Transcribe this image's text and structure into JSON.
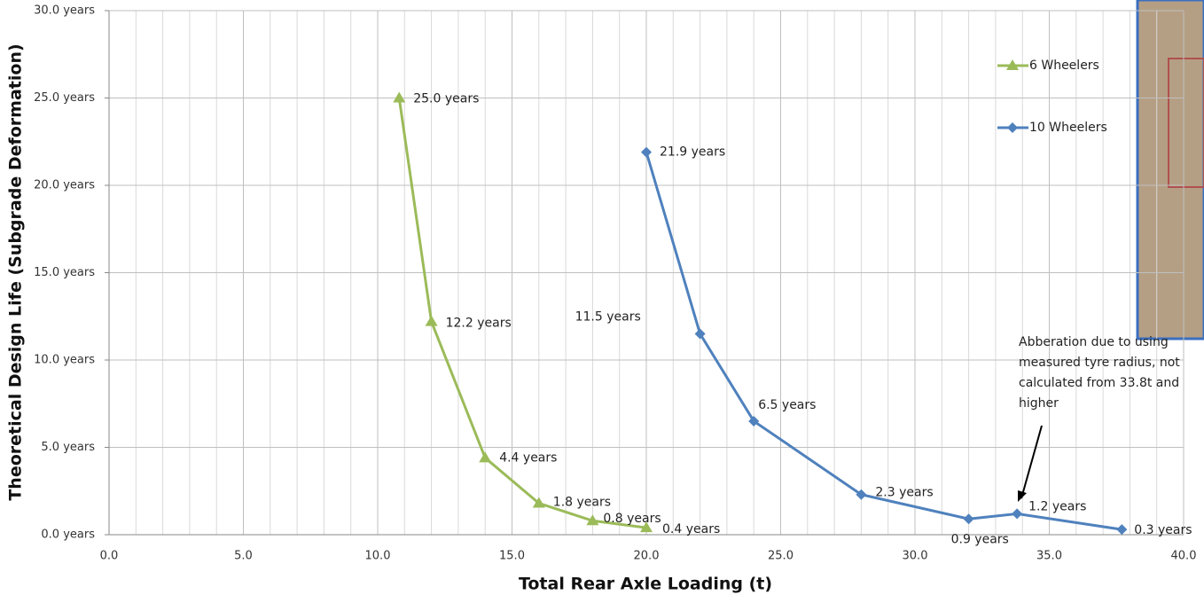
{
  "chart_data": {
    "type": "line",
    "x_label": "Total Rear Axle Loading (t)",
    "y_label": "Theoretical Design Life  (Subgrade Deformation)",
    "xlim": [
      0,
      40
    ],
    "ylim": [
      0,
      30
    ],
    "xticks": [
      {
        "value": 0,
        "label": "0.0"
      },
      {
        "value": 5,
        "label": "5.0"
      },
      {
        "value": 10,
        "label": "10.0"
      },
      {
        "value": 15,
        "label": "15.0"
      },
      {
        "value": 20,
        "label": "20.0"
      },
      {
        "value": 25,
        "label": "25.0"
      },
      {
        "value": 30,
        "label": "30.0"
      },
      {
        "value": 35,
        "label": "35.0"
      },
      {
        "value": 40,
        "label": "40.0"
      }
    ],
    "xminorticks": [
      1,
      2,
      3,
      4,
      6,
      7,
      8,
      9,
      11,
      12,
      13,
      14,
      16,
      17,
      18,
      19,
      21,
      22,
      23,
      24,
      26,
      27,
      28,
      29,
      31,
      32,
      33,
      34,
      36,
      37,
      38,
      39
    ],
    "yticks": [
      {
        "value": 0,
        "label": "0.0 years"
      },
      {
        "value": 5,
        "label": "5.0 years"
      },
      {
        "value": 10,
        "label": "10.0 years"
      },
      {
        "value": 15,
        "label": "15.0 years"
      },
      {
        "value": 20,
        "label": "20.0 years"
      },
      {
        "value": 25,
        "label": "25.0 years"
      },
      {
        "value": 30,
        "label": "30.0 years"
      }
    ],
    "grid": true,
    "legend": "upper right",
    "series": [
      {
        "name": "6 Wheelers",
        "color": "#9bbb59",
        "marker": "triangle",
        "x": [
          10.8,
          12,
          14,
          16,
          18,
          20
        ],
        "values": [
          25.0,
          12.2,
          4.4,
          1.8,
          0.8,
          0.4
        ],
        "value_labels": [
          "25.0 years",
          "12.2 years",
          "4.4 years",
          "1.8 years",
          "0.8 years",
          "0.4 years"
        ]
      },
      {
        "name": "10 Wheelers",
        "color": "#4f81bd",
        "marker": "diamond",
        "x": [
          20,
          22,
          24,
          28,
          32,
          33.8,
          37.7
        ],
        "values": [
          21.9,
          11.5,
          6.5,
          2.3,
          0.9,
          1.2,
          0.3
        ],
        "value_labels": [
          "21.9 years",
          "11.5 years",
          "6.5 years",
          "2.3 years",
          "0.9 years",
          "1.2 years",
          "0.3 years"
        ]
      }
    ],
    "annotation": [
      "Abberation due to using",
      "measured tyre radius, not",
      "calculated from 33.8t and",
      "higher"
    ]
  }
}
